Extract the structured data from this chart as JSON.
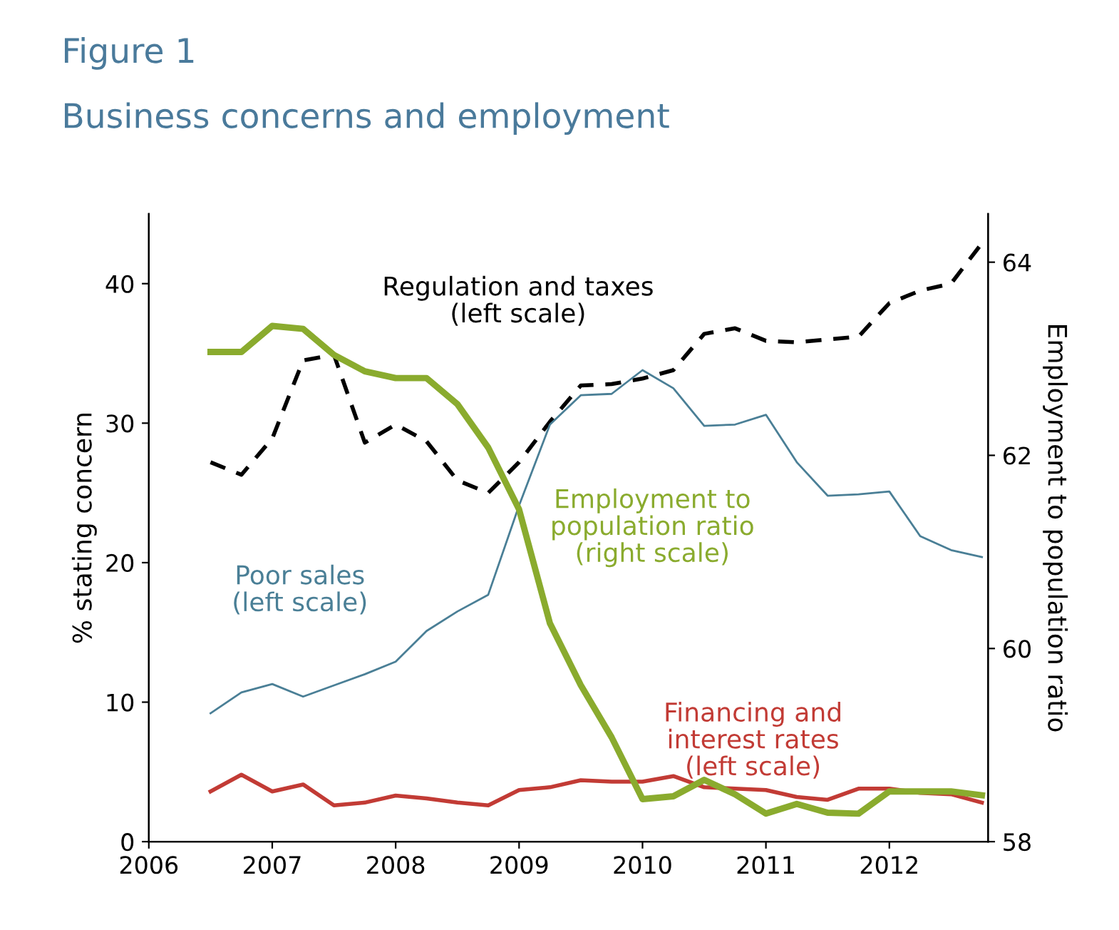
{
  "chart_data": {
    "type": "line",
    "title": "Figure 1",
    "subtitle": "Business concerns and employment",
    "ylabel": "% stating concern",
    "y2label": "Employment to population ratio",
    "x": [
      2006.5,
      2006.75,
      2007,
      2007.25,
      2007.5,
      2007.75,
      2008,
      2008.25,
      2008.5,
      2008.75,
      2009,
      2009.25,
      2009.5,
      2009.75,
      2010,
      2010.25,
      2010.5,
      2010.75,
      2011,
      2011.25,
      2011.5,
      2011.75,
      2012,
      2012.25,
      2012.5,
      2012.75
    ],
    "series": [
      {
        "name": "Regulation and taxes\n(left scale)",
        "color": "#000000",
        "line_style": "dashed",
        "values": [
          27.2,
          26.3,
          28.9,
          34.5,
          34.9,
          28.6,
          29.9,
          28.7,
          25.9,
          25.0,
          27.2,
          30.1,
          32.7,
          32.8,
          33.2,
          33.8,
          36.4,
          36.8,
          35.9,
          35.8,
          36.0,
          36.2,
          38.6,
          39.5,
          40.0,
          42.9
        ]
      },
      {
        "name": "Poor sales\n(left scale)",
        "color": "#4a7f96",
        "values": [
          9.2,
          10.7,
          11.3,
          10.4,
          11.2,
          12.0,
          12.9,
          15.1,
          16.5,
          17.7,
          24.1,
          29.9,
          32.0,
          32.1,
          33.8,
          32.5,
          29.8,
          29.9,
          30.6,
          27.2,
          24.8,
          24.9,
          25.1,
          21.9,
          20.9,
          20.4
        ]
      },
      {
        "name": "Employment to\npopulation ratio\n(right scale)",
        "color": "#8aab2e",
        "axis": "y2",
        "values": [
          63.07,
          63.07,
          63.34,
          63.31,
          63.04,
          62.87,
          62.8,
          62.8,
          62.53,
          62.08,
          61.44,
          60.26,
          59.62,
          59.08,
          58.44,
          58.47,
          58.64,
          58.49,
          58.29,
          58.39,
          58.3,
          58.29,
          58.52,
          58.52,
          58.52,
          58.48
        ]
      },
      {
        "name": "Financing and\ninterest rates\n(left scale)",
        "color": "#c23b35",
        "values": [
          3.6,
          4.8,
          3.6,
          4.1,
          2.6,
          2.8,
          3.3,
          3.1,
          2.8,
          2.6,
          3.7,
          3.9,
          4.4,
          4.3,
          4.3,
          4.7,
          3.9,
          3.8,
          3.7,
          3.2,
          3.0,
          3.8,
          3.8,
          3.5,
          3.4,
          2.8
        ]
      }
    ],
    "xlim": [
      2006,
      2012.8
    ],
    "xticks": [
      2006,
      2007,
      2008,
      2009,
      2010,
      2011,
      2012
    ],
    "ylim": [
      0,
      45
    ],
    "yticks": [
      0,
      10,
      20,
      30,
      40
    ],
    "y2lim": [
      58,
      64.5
    ],
    "y2ticks": [
      58,
      60,
      62,
      64
    ],
    "grid": false,
    "legend": false
  }
}
